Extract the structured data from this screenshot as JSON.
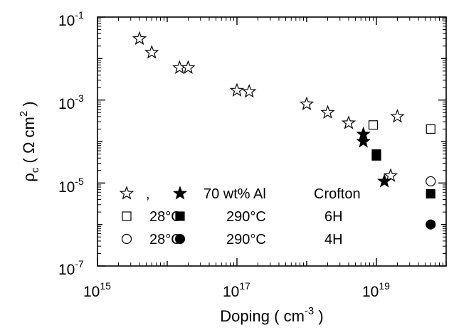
{
  "chart_data": {
    "type": "scatter",
    "x_scale": "log",
    "y_scale": "log",
    "xlim": [
      1000000000000000.0,
      1e+20
    ],
    "ylim": [
      1e-07,
      0.1
    ],
    "xlabel": {
      "main": "Doping ( cm",
      "sup": "-3",
      "tail": " )"
    },
    "ylabel": {
      "rho": "ρ",
      "sub": "c",
      "open": " ( Ω cm",
      "sup": "2",
      "close": " )"
    },
    "x_ticks": [
      {
        "value": 1000000000000000.0,
        "base": "10",
        "exp": "15"
      },
      {
        "value": 1e+17,
        "base": "10",
        "exp": "17"
      },
      {
        "value": 1e+19,
        "base": "10",
        "exp": "19"
      }
    ],
    "y_ticks": [
      {
        "value": 1e-07,
        "base": "10",
        "exp": "-7"
      },
      {
        "value": 1e-05,
        "base": "10",
        "exp": "-5"
      },
      {
        "value": 0.001,
        "base": "10",
        "exp": "-3"
      },
      {
        "value": 0.1,
        "base": "10",
        "exp": "-1"
      }
    ],
    "grid": false,
    "legend_position": "bottom-left",
    "legend_rows": [
      {
        "markers": [
          "star-open",
          "star-filled"
        ],
        "sep": ",",
        "label1": "70 wt% Al",
        "label2": "Crofton"
      },
      {
        "markers": [
          "square-open",
          "square-filled"
        ],
        "sep": "",
        "label1": "28°C",
        "label1b": "290°C",
        "label2": "6H"
      },
      {
        "markers": [
          "circle-open",
          "circle-filled"
        ],
        "sep": "",
        "label1": "28°C",
        "label1b": "290°C",
        "label2": "4H"
      }
    ],
    "series": [
      {
        "marker": "star-open",
        "points": [
          [
            4000000000000000.0,
            0.03
          ],
          [
            6000000000000000.0,
            0.014
          ],
          [
            1.5e+16,
            0.006
          ],
          [
            2e+16,
            0.006
          ],
          [
            1e+17,
            0.0017
          ],
          [
            1.5e+17,
            0.0016
          ],
          [
            1e+18,
            0.0008
          ],
          [
            2e+18,
            0.0005
          ],
          [
            4e+18,
            0.00028
          ],
          [
            2e+19,
            0.0004
          ],
          [
            1.6e+19,
            1.5e-05
          ]
        ]
      },
      {
        "marker": "star-filled",
        "points": [
          [
            6.5e+18,
            0.00015
          ],
          [
            6.5e+18,
            0.0001
          ],
          [
            1.3e+19,
            1.1e-05
          ]
        ]
      },
      {
        "marker": "square-open",
        "points": [
          [
            9e+18,
            0.00025
          ],
          [
            6e+19,
            0.0002
          ]
        ]
      },
      {
        "marker": "square-filled",
        "points": [
          [
            1e+19,
            5e-05
          ],
          [
            1e+19,
            4.5e-05
          ],
          [
            6e+19,
            5.5e-06
          ]
        ]
      },
      {
        "marker": "circle-open",
        "points": [
          [
            6e+19,
            1.1e-05
          ]
        ]
      },
      {
        "marker": "circle-filled",
        "points": [
          [
            6e+19,
            1e-06
          ]
        ]
      }
    ]
  }
}
